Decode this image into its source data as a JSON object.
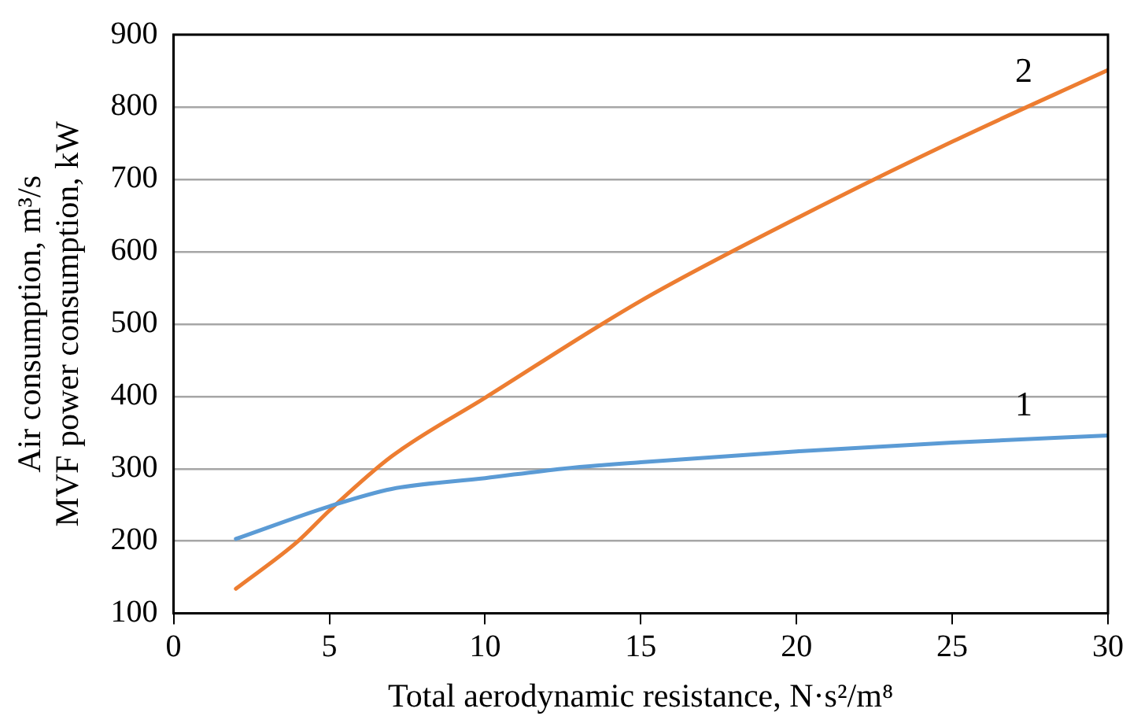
{
  "chart_data": {
    "type": "line",
    "xlabel": "Total aerodynamic resistance, N·s²/m⁸",
    "ylabel": "Air consumption, m³/s\nMVF power consumption, kW",
    "xlim": [
      0,
      30
    ],
    "xticks": [
      0,
      5,
      10,
      15,
      20,
      25,
      30
    ],
    "ylim": [
      100,
      900
    ],
    "yticks": [
      100,
      200,
      300,
      400,
      500,
      600,
      700,
      800,
      900
    ],
    "grid": "y",
    "legend": false,
    "marker": "none",
    "line_style": "solid",
    "series": [
      {
        "color": "#5b9bd5",
        "x": [
          2,
          5,
          7,
          10,
          12.5,
          15,
          20,
          25,
          30
        ],
        "values": [
          203,
          248,
          272,
          287,
          300,
          309,
          324,
          336,
          346
        ]
      },
      {
        "color": "#ed7d31",
        "x": [
          2,
          4,
          5,
          7,
          10,
          15,
          20,
          25,
          30
        ],
        "values": [
          134,
          200,
          242,
          317,
          398,
          532,
          646,
          752,
          851
        ]
      }
    ],
    "annotations": [
      "1",
      "2"
    ]
  }
}
